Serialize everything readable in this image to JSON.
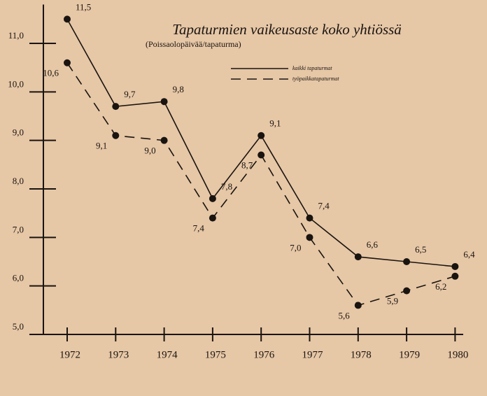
{
  "chart_data": {
    "type": "line",
    "title": "Tapaturmien vaikeusaste koko yhtiössä",
    "subtitle": "(Poissaolopäivää/tapaturma)",
    "categories": [
      "1972",
      "1973",
      "1974",
      "1975",
      "1976",
      "1977",
      "1978",
      "1979",
      "1980"
    ],
    "series": [
      {
        "name": "kaikki tapaturmat",
        "color": "#1a1410",
        "dash": false,
        "values": [
          11.5,
          9.7,
          9.8,
          7.8,
          9.1,
          7.4,
          6.6,
          6.5,
          6.4
        ],
        "value_labels": [
          "11,5",
          "9,7",
          "9,8",
          "7,8",
          "9,1",
          "7,4",
          "6,6",
          "6,5",
          "6,4"
        ]
      },
      {
        "name": "työpaikkatapaturmat",
        "color": "#1a1410",
        "dash": true,
        "values": [
          10.6,
          9.1,
          9.0,
          7.4,
          8.7,
          7.0,
          5.6,
          5.9,
          6.2
        ],
        "value_labels": [
          "10,6",
          "9,1",
          "9,0",
          "7,4",
          "8,7",
          "7,0",
          "5,6",
          "5,9",
          "6,2"
        ]
      }
    ],
    "ylim": [
      5,
      11.8
    ],
    "yticks": [
      {
        "value": 5,
        "label": "5,0"
      },
      {
        "value": 6,
        "label": "6,0"
      },
      {
        "value": 7,
        "label": "7,0"
      },
      {
        "value": 8,
        "label": "8,0"
      },
      {
        "value": 9,
        "label": "9,0"
      },
      {
        "value": 10,
        "label": "10,0"
      },
      {
        "value": 11,
        "label": "11,0"
      }
    ],
    "grid": false
  }
}
